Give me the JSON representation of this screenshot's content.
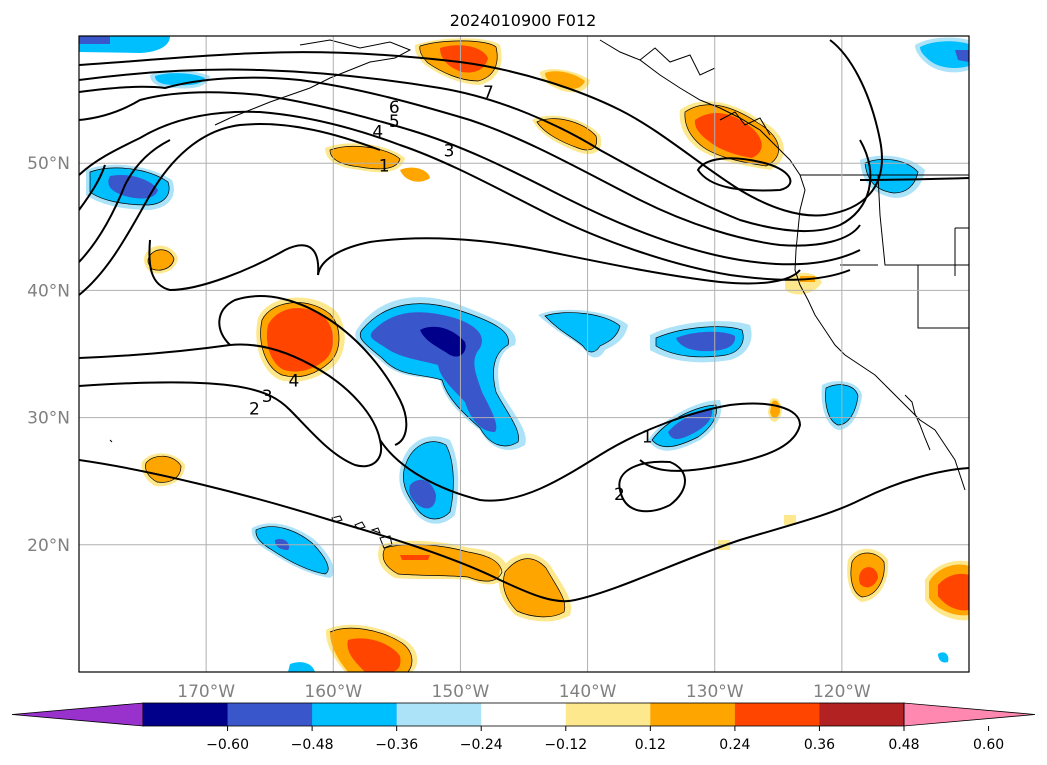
{
  "title": "2024010900 F012",
  "lat_labels": [
    {
      "lat": 50,
      "text": "50°N"
    },
    {
      "lat": 40,
      "text": "40°N"
    },
    {
      "lat": 30,
      "text": "30°N"
    },
    {
      "lat": 20,
      "text": "20°N"
    }
  ],
  "lon_labels": [
    {
      "lon": -170,
      "text": "170°W"
    },
    {
      "lon": -160,
      "text": "160°W"
    },
    {
      "lon": -150,
      "text": "150°W"
    },
    {
      "lon": -140,
      "text": "140°W"
    },
    {
      "lon": -130,
      "text": "130°W"
    },
    {
      "lon": -120,
      "text": "120°W"
    }
  ],
  "map_extent": {
    "lon_min": -180,
    "lon_max": -110,
    "lat_min": 10,
    "lat_max": 60
  },
  "colorbar": {
    "ticks": [
      "−0.60",
      "−0.48",
      "−0.36",
      "−0.24",
      "−0.12",
      "0.12",
      "0.24",
      "0.36",
      "0.48",
      "0.60"
    ],
    "colors": [
      "#9932cc",
      "#00008b",
      "#3a56cb",
      "#00bfff",
      "#ade3f8",
      "#ffffff",
      "#fde88d",
      "#ffa500",
      "#ff4500",
      "#b22222",
      "#ff88b0"
    ]
  },
  "contour_labels": [
    {
      "text": "7",
      "lon": -147.8,
      "lat": 55.6
    },
    {
      "text": "6",
      "lon": -155.2,
      "lat": 54.4
    },
    {
      "text": "5",
      "lon": -155.2,
      "lat": 53.3
    },
    {
      "text": "4",
      "lon": -156.5,
      "lat": 52.5
    },
    {
      "text": "3",
      "lon": -150.9,
      "lat": 51.0
    },
    {
      "text": "1",
      "lon": -156.0,
      "lat": 49.8
    },
    {
      "text": "4",
      "lon": -163.1,
      "lat": 32.9
    },
    {
      "text": "3",
      "lon": -165.2,
      "lat": 31.7
    },
    {
      "text": "2",
      "lon": -166.2,
      "lat": 30.7
    },
    {
      "text": "1",
      "lon": -135.3,
      "lat": 28.5
    },
    {
      "text": "2",
      "lon": -137.5,
      "lat": 24.0
    }
  ],
  "legend_colors": {
    "contour": "#000000",
    "grid": "#b0b0b0",
    "tick_label": "#808080"
  }
}
